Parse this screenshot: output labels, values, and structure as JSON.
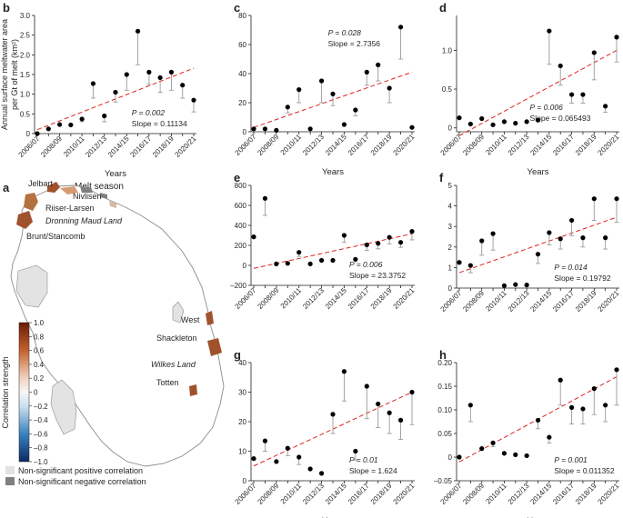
{
  "chart_data": [
    {
      "panel": "b",
      "type": "scatter",
      "title": "",
      "xlabel": "Years",
      "ylabel_lines": [
        "Annual surface meltwater area",
        "per Gt of melt (km²)"
      ],
      "categories": [
        "2006/07",
        "2007/08",
        "2008/09",
        "2009/10",
        "2010/11",
        "2011/12",
        "2012/13",
        "2013/14",
        "2014/15",
        "2015/16",
        "2016/17",
        "2017/18",
        "2018/19",
        "2019/20",
        "2020/21"
      ],
      "tick_labels": [
        "2006/07",
        "2008/09",
        "2010/11",
        "2012/13",
        "2014/15",
        "2016/17",
        "2018/19",
        "2020/21"
      ],
      "values": [
        0.0,
        0.12,
        0.23,
        0.22,
        0.37,
        1.27,
        0.45,
        1.05,
        1.5,
        2.6,
        1.56,
        1.42,
        1.56,
        1.23,
        0.85
      ],
      "error_upper": [
        0.0,
        0.12,
        0.23,
        0.22,
        0.37,
        1.27,
        0.45,
        1.05,
        1.5,
        2.6,
        1.56,
        1.42,
        1.56,
        1.23,
        0.85
      ],
      "error_lower": [
        0.0,
        0.12,
        0.23,
        0.22,
        0.3,
        0.9,
        0.3,
        0.8,
        1.1,
        1.75,
        1.25,
        1.05,
        1.1,
        0.9,
        0.55
      ],
      "ylim": [
        0,
        3
      ],
      "yticks": [
        0,
        0.5,
        1.0,
        1.5,
        2.0,
        2.5,
        3.0
      ],
      "ytick_labels": [
        "0",
        "0.5",
        "1.0",
        "1.5",
        "2.0",
        "2.5",
        "3.0"
      ],
      "trend": [
        0.1,
        1.66
      ],
      "p_label": "P = 0.002",
      "slope_label": "Slope = 0.11134",
      "annot_pos": "bottom-right"
    },
    {
      "panel": "c",
      "type": "scatter",
      "xlabel": "Years",
      "categories": [
        "2006/07",
        "2007/08",
        "2008/09",
        "2009/10",
        "2010/11",
        "2011/12",
        "2012/13",
        "2013/14",
        "2014/15",
        "2015/16",
        "2016/17",
        "2017/18",
        "2018/19",
        "2019/20",
        "2020/21"
      ],
      "tick_labels": [
        "2006/07",
        "2008/09",
        "2010/11",
        "2012/13",
        "2014/15",
        "2016/17",
        "2018/19",
        "2020/21"
      ],
      "values": [
        2,
        2,
        1,
        17,
        29,
        2,
        35,
        26,
        5,
        15,
        41,
        46,
        30,
        72,
        3
      ],
      "error_lower": [
        2,
        2,
        1,
        13,
        20,
        2,
        20,
        18,
        5,
        11,
        32,
        35,
        20,
        50,
        3
      ],
      "ylim": [
        0,
        80
      ],
      "yticks": [
        0,
        20,
        40,
        60,
        80
      ],
      "ytick_labels": [
        "0",
        "20",
        "40",
        "60",
        "80"
      ],
      "trend": [
        3,
        41
      ],
      "p_label": "P = 0.028",
      "slope_label": "Slope = 2.7356",
      "annot_pos": "top-center"
    },
    {
      "panel": "d",
      "type": "scatter",
      "xlabel": "Years",
      "categories": [
        "2006/07",
        "2007/08",
        "2008/09",
        "2009/10",
        "2010/11",
        "2011/12",
        "2012/13",
        "2013/14",
        "2014/15",
        "2015/16",
        "2016/17",
        "2017/18",
        "2018/19",
        "2019/20",
        "2020/21"
      ],
      "tick_labels": [
        "2006/07",
        "2008/09",
        "2010/11",
        "2012/13",
        "2014/15",
        "2016/17",
        "2018/19",
        "2020/21"
      ],
      "values": [
        0.13,
        0.05,
        0.12,
        0.04,
        0.08,
        0.06,
        0.08,
        0.1,
        1.25,
        0.8,
        0.43,
        0.43,
        0.97,
        0.28,
        1.17
      ],
      "error_lower": [
        0.13,
        0.05,
        0.12,
        0.04,
        0.08,
        0.06,
        0.08,
        0.1,
        0.82,
        0.55,
        0.32,
        0.32,
        0.62,
        0.2,
        0.85
      ],
      "ylim": [
        -0.05,
        1.45
      ],
      "yticks": [
        0,
        0.5,
        1.0
      ],
      "ytick_labels": [
        "0",
        "0.5",
        "1.0"
      ],
      "trend": [
        -0.1,
        1.0
      ],
      "p_label": "P = 0.006",
      "slope_label": "Slope = 0.065493",
      "annot_pos": "bottom-center"
    },
    {
      "panel": "e",
      "type": "scatter",
      "xlabel": "",
      "categories": [
        "2006/07",
        "2007/08",
        "2008/09",
        "2009/10",
        "2010/11",
        "2011/12",
        "2012/13",
        "2013/14",
        "2014/15",
        "2015/16",
        "2016/17",
        "2017/18",
        "2018/19",
        "2019/20",
        "2020/21"
      ],
      "tick_labels": [
        "2006/07",
        "2008/09",
        "2010/11",
        "2012/13",
        "2014/15",
        "2016/17",
        "2018/19",
        "2020/21"
      ],
      "values": [
        285,
        670,
        15,
        20,
        130,
        15,
        50,
        50,
        300,
        60,
        205,
        220,
        280,
        230,
        340
      ],
      "error_lower": [
        285,
        500,
        15,
        20,
        90,
        15,
        50,
        50,
        230,
        60,
        150,
        165,
        215,
        180,
        255
      ],
      "ylim": [
        -200,
        800
      ],
      "yticks": [
        -200,
        0,
        200,
        400,
        600,
        800
      ],
      "ytick_labels": [
        "–200",
        "0",
        "200",
        "400",
        "600",
        "800"
      ],
      "trend": [
        -30,
        315
      ],
      "p_label": "P = 0.006",
      "slope_label": "Slope = 23.3752",
      "annot_pos": "bottom-right"
    },
    {
      "panel": "f",
      "type": "scatter",
      "xlabel": "",
      "categories": [
        "2006/07",
        "2007/08",
        "2008/09",
        "2009/10",
        "2010/11",
        "2011/12",
        "2012/13",
        "2013/14",
        "2014/15",
        "2015/16",
        "2016/17",
        "2017/18",
        "2018/19",
        "2019/20",
        "2020/21"
      ],
      "tick_labels": [
        "2006/07",
        "2008/09",
        "2010/11",
        "2012/13",
        "2014/15",
        "2016/17",
        "2018/19",
        "2020/21"
      ],
      "values": [
        1.25,
        1.1,
        2.3,
        2.65,
        0.12,
        0.17,
        0.15,
        1.65,
        2.7,
        2.4,
        3.3,
        2.45,
        4.35,
        2.45,
        4.35
      ],
      "error_lower": [
        1.25,
        0.75,
        1.6,
        1.85,
        0.12,
        0.17,
        0.15,
        1.2,
        2.1,
        1.9,
        2.55,
        2.0,
        3.3,
        1.9,
        3.2
      ],
      "ylim": [
        0,
        5
      ],
      "yticks": [
        0,
        1,
        2,
        3,
        4,
        5
      ],
      "ytick_labels": [
        "0",
        "1",
        "2",
        "3",
        "4",
        "5"
      ],
      "trend": [
        0.75,
        3.45
      ],
      "p_label": "P = 0.014",
      "slope_label": "Slope = 0.19792",
      "annot_pos": "bottom-right"
    },
    {
      "panel": "g",
      "type": "scatter",
      "xlabel": "Years",
      "categories": [
        "2006/07",
        "2007/08",
        "2008/09",
        "2009/10",
        "2010/11",
        "2011/12",
        "2012/13",
        "2013/14",
        "2014/15",
        "2015/16",
        "2016/17",
        "2017/18",
        "2018/19",
        "2019/20",
        "2020/21"
      ],
      "tick_labels": [
        "2006/07",
        "2008/09",
        "2010/11",
        "2012/13",
        "2014/15",
        "2016/17",
        "2018/19",
        "2020/21"
      ],
      "values": [
        7.5,
        13.5,
        6.5,
        11,
        8,
        4,
        2.5,
        22.5,
        37,
        10,
        32,
        26,
        23,
        20.5,
        30
      ],
      "error_lower": [
        7.5,
        10,
        6.5,
        8.5,
        5.5,
        4,
        2.5,
        16,
        27,
        7,
        21,
        18,
        16,
        14,
        19
      ],
      "ylim": [
        0,
        40
      ],
      "yticks": [
        0,
        10,
        20,
        30,
        40
      ],
      "ytick_labels": [
        "0",
        "10",
        "20",
        "30",
        "40"
      ],
      "trend": [
        5,
        30
      ],
      "p_label": "P = 0.01",
      "slope_label": "Slope = 1.624",
      "annot_pos": "bottom-right"
    },
    {
      "panel": "h",
      "type": "scatter",
      "xlabel": "Years",
      "categories": [
        "2006/07",
        "2007/08",
        "2008/09",
        "2009/10",
        "2010/11",
        "2011/12",
        "2012/13",
        "2013/14",
        "2014/15",
        "2015/16",
        "2016/17",
        "2017/18",
        "2018/19",
        "2019/20",
        "2020/21"
      ],
      "tick_labels": [
        "2006/07",
        "2008/09",
        "2010/11",
        "2012/13",
        "2014/15",
        "2016/17",
        "2018/19",
        "2020/21"
      ],
      "values": [
        0.0,
        0.11,
        0.018,
        0.03,
        0.008,
        0.005,
        0.003,
        0.078,
        0.042,
        0.163,
        0.105,
        0.102,
        0.145,
        0.11,
        0.185
      ],
      "error_lower": [
        0.0,
        0.075,
        0.018,
        0.022,
        0.008,
        0.005,
        0.003,
        0.06,
        0.03,
        0.11,
        0.07,
        0.07,
        0.09,
        0.075,
        0.11
      ],
      "ylim": [
        -0.05,
        0.2
      ],
      "yticks": [
        -0.05,
        0,
        0.05,
        0.1,
        0.15,
        0.2
      ],
      "ytick_labels": [
        "–0.05",
        "0",
        "0.05",
        "0.10",
        "0.15",
        "0.20"
      ],
      "trend": [
        -0.01,
        0.17
      ],
      "p_label": "P = 0.001",
      "slope_label": "Slope = 0.011352",
      "annot_pos": "bottom-right"
    }
  ],
  "map": {
    "panel_label": "a",
    "title": "Melt season",
    "regions": [
      "Jelbart",
      "Nivlisen",
      "Riiser-Larsen",
      "Dronning Maud Land",
      "Brunt/Stancomb",
      "West",
      "Shackleton",
      "Wilkes Land",
      "Totten"
    ],
    "colorbar_label": "Correlation strength",
    "colorbar_ticks": [
      "1.0",
      "0.8",
      "0.6",
      "0.4",
      "0.2",
      "0",
      "–0.2",
      "–0.4",
      "–0.6",
      "–0.8",
      "–1.0"
    ],
    "legend_positive": "Non-significant positive correlation",
    "legend_negative": "Non-significant negative correlation",
    "colors": {
      "positive": "#e3e3e3",
      "negative": "#808080",
      "strong": "#a0522d"
    }
  }
}
